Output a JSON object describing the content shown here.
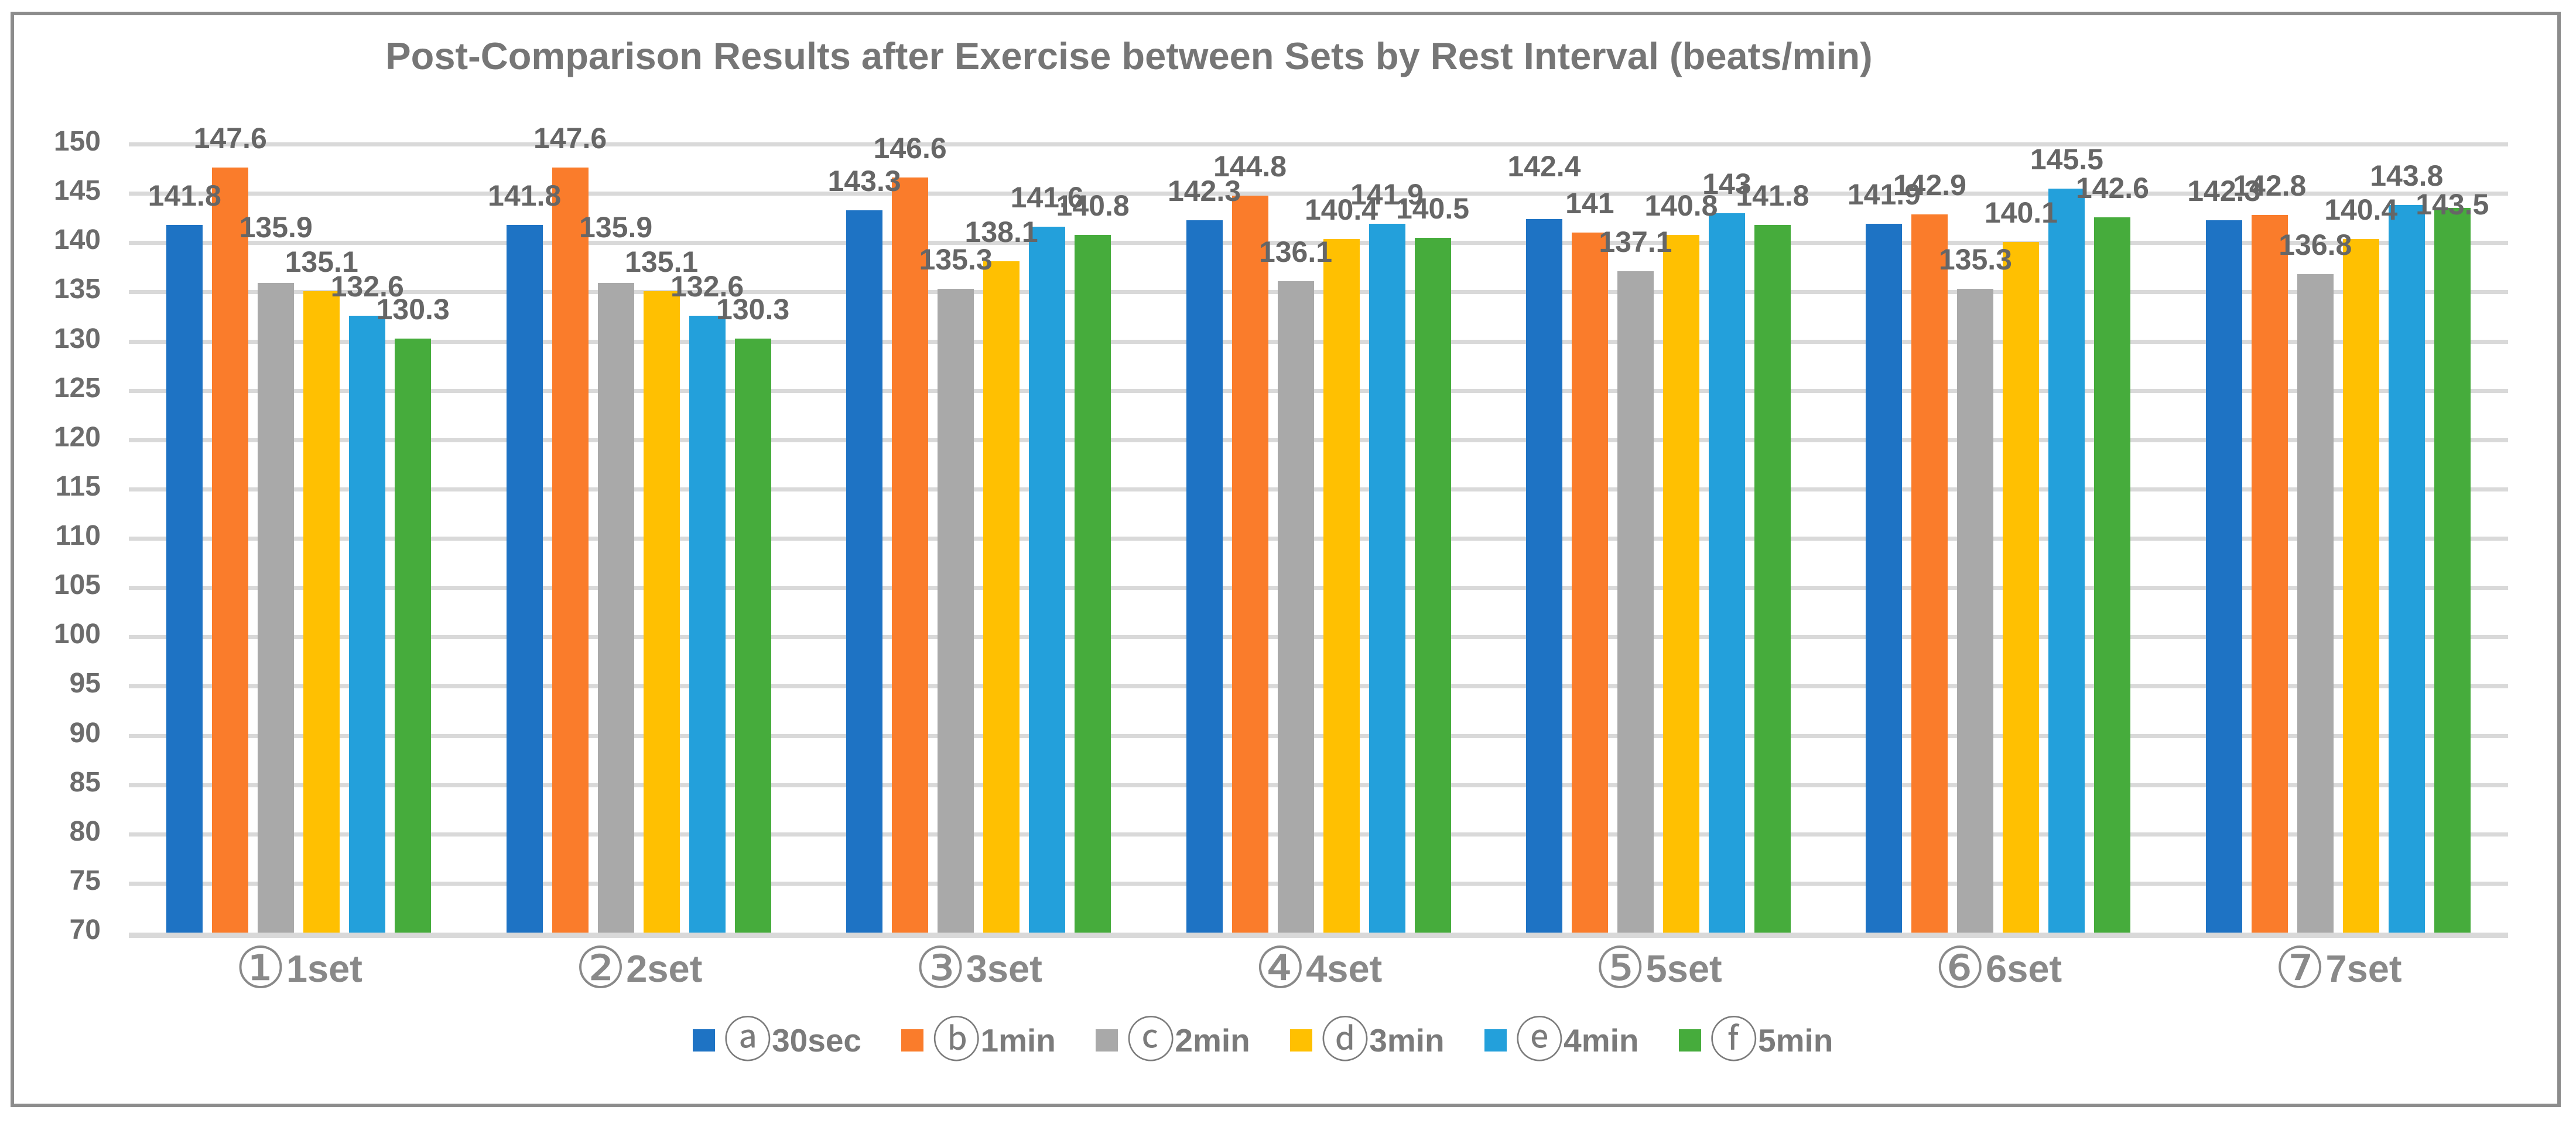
{
  "chart_data": {
    "type": "bar",
    "title": "Post-Comparison Results after Exercise between Sets by Rest Interval (beats/min)",
    "categories": [
      "①1set",
      "②2set",
      "③3set",
      "④4set",
      "⑤5set",
      "⑥6set",
      "⑦7set"
    ],
    "series": [
      {
        "name": "ⓐ30sec",
        "color": "#1E73C4",
        "values": [
          141.8,
          141.8,
          143.3,
          142.3,
          142.4,
          141.9,
          142.3
        ],
        "labels": [
          "141.8",
          "141.8",
          "143.3",
          "142.3",
          "142.4",
          "141.9",
          "142.3"
        ],
        "label_dy": [
          0,
          0,
          0,
          0,
          -40,
          0,
          0
        ]
      },
      {
        "name": "ⓑ1min",
        "color": "#FA7C2B",
        "values": [
          147.6,
          147.6,
          146.6,
          144.8,
          141,
          142.9,
          142.8
        ],
        "labels": [
          "147.6",
          "147.6",
          "146.6",
          "144.8",
          "141",
          "142.9",
          "142.8"
        ],
        "label_dy": [
          0,
          0,
          0,
          0,
          0,
          0,
          0
        ]
      },
      {
        "name": "ⓒ2min",
        "color": "#A9A9A9",
        "values": [
          135.9,
          135.9,
          135.3,
          136.1,
          137.1,
          135.3,
          136.8
        ],
        "labels": [
          "135.9",
          "135.9",
          "135.3",
          "136.1",
          "137.1",
          "135.3",
          "136.8"
        ],
        "label_dy": [
          -45,
          -45,
          0,
          0,
          0,
          0,
          0
        ]
      },
      {
        "name": "ⓓ3min",
        "color": "#FFC001",
        "values": [
          135.1,
          135.1,
          138.1,
          140.4,
          140.8,
          140.1,
          140.4
        ],
        "labels": [
          "135.1",
          "135.1",
          "138.1",
          "140.4",
          "140.8",
          "140.1",
          "140.4"
        ],
        "label_dy": [
          0,
          0,
          0,
          0,
          0,
          0,
          0
        ]
      },
      {
        "name": "ⓔ4min",
        "color": "#23A0DB",
        "values": [
          132.6,
          132.6,
          141.6,
          141.9,
          143,
          145.5,
          143.8
        ],
        "labels": [
          "132.6",
          "132.6",
          "141.6",
          "141.9",
          "143",
          "145.5",
          "143.8"
        ],
        "label_dy": [
          0,
          0,
          0,
          0,
          0,
          0,
          0
        ]
      },
      {
        "name": "ⓕ5min",
        "color": "#46AC3C",
        "values": [
          130.3,
          130.3,
          140.8,
          140.5,
          141.8,
          142.6,
          143.5
        ],
        "labels": [
          "130.3",
          "130.3",
          "140.8",
          "140.5",
          "141.8",
          "142.6",
          "143.5"
        ],
        "label_dy": [
          0,
          0,
          0,
          0,
          0,
          0,
          44
        ]
      }
    ],
    "ylim": [
      70,
      150
    ],
    "ytick_step": 5,
    "yticks": [
      150,
      145,
      140,
      135,
      130,
      125,
      120,
      115,
      110,
      105,
      100,
      95,
      90,
      85,
      80,
      75,
      70
    ],
    "grid": true,
    "legend_position": "bottom",
    "ylabel": "",
    "xlabel": ""
  },
  "colors": {
    "frame_border": "#8C8C8C",
    "gridline": "#D9D9D9",
    "title_text": "#767676",
    "ytick_text": "#6C6C6C",
    "data_label_text": "#666666",
    "xlabel_text": "#898989",
    "legend_text": "#7B7B7B",
    "background": "#FFFFFF"
  }
}
